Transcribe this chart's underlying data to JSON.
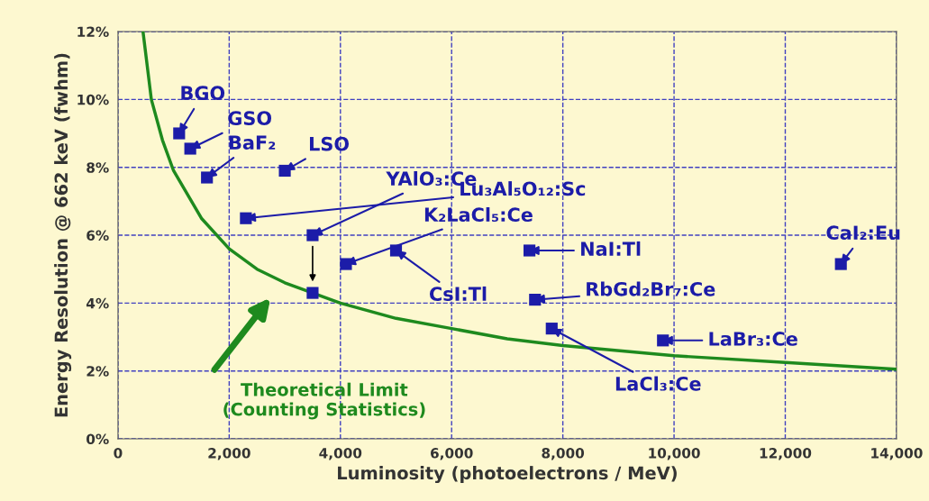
{
  "chart_data": {
    "type": "scatter",
    "xlabel": "Luminosity (photoelectrons / MeV)",
    "ylabel": "Energy Resolution @ 662 keV (fwhm)",
    "xlim": [
      0,
      14000
    ],
    "ylim": [
      0,
      12
    ],
    "xticks": [
      0,
      {
        "value": 2000,
        "label": "2,000"
      },
      {
        "value": 4000,
        "label": "4,000"
      },
      {
        "value": 6000,
        "label": "6,000"
      },
      {
        "value": 8000,
        "label": "8,000"
      },
      {
        "value": 10000,
        "label": "10,000"
      },
      {
        "value": 12000,
        "label": "12,000"
      },
      {
        "value": 14000,
        "label": "14,000"
      }
    ],
    "yticks": [
      {
        "value": 0,
        "label": "0%"
      },
      {
        "value": 2,
        "label": "2%"
      },
      {
        "value": 4,
        "label": "4%"
      },
      {
        "value": 6,
        "label": "6%"
      },
      {
        "value": 8,
        "label": "8%"
      },
      {
        "value": 10,
        "label": "10%"
      },
      {
        "value": 12,
        "label": "12%"
      }
    ],
    "grid": true,
    "legend": false,
    "series": [
      {
        "marker": "square",
        "color": "#1c1ca8",
        "x": [
          1100,
          1300,
          1600,
          3000,
          2300,
          3500,
          3500,
          4100,
          5000,
          7400,
          7500,
          7800,
          9800,
          13000
        ],
        "values": [
          9.0,
          8.55,
          7.7,
          7.9,
          6.5,
          6.0,
          4.3,
          5.15,
          5.55,
          5.55,
          4.1,
          3.25,
          2.9,
          5.15
        ]
      },
      {
        "type": "line",
        "color": "#1e8a1e",
        "line_style": "solid",
        "x": [
          450,
          600,
          800,
          1000,
          1500,
          2000,
          2500,
          3000,
          4000,
          5000,
          6000,
          7000,
          8000,
          10000,
          12000,
          14000
        ],
        "values": [
          12.0,
          10.0,
          8.8,
          7.9,
          6.5,
          5.6,
          5.0,
          4.6,
          4.0,
          3.55,
          3.25,
          2.95,
          2.75,
          2.45,
          2.25,
          2.05
        ]
      }
    ],
    "annotations": [
      {
        "text": "BGO",
        "x": 1100,
        "y": 9.0
      },
      {
        "text": "GSO",
        "x": 1300,
        "y": 8.55
      },
      {
        "text": "BaF₂",
        "x": 1600,
        "y": 7.7
      },
      {
        "text": "LSO",
        "x": 3000,
        "y": 7.9
      },
      {
        "text": "Lu₃Al₅O₁₂:Sc",
        "x": 2300,
        "y": 6.5
      },
      {
        "text": "YAlO₃:Ce",
        "x": 3500,
        "y": 6.0
      },
      {
        "text": "K₂LaCl₅:Ce",
        "x": 4100,
        "y": 5.15
      },
      {
        "text": "CsI:Tl",
        "x": 5000,
        "y": 5.55
      },
      {
        "text": "NaI:Tl",
        "x": 7400,
        "y": 5.55
      },
      {
        "text": "RbGd₂Br₇:Ce",
        "x": 7500,
        "y": 4.1
      },
      {
        "text": "LaCl₃:Ce",
        "x": 7800,
        "y": 3.25
      },
      {
        "text": "LaBr₃:Ce",
        "x": 9800,
        "y": 2.9
      },
      {
        "text": "CaI₂:Eu",
        "x": 13000,
        "y": 5.15
      },
      "Theoretical Limit\n(Counting Statistics)"
    ]
  }
}
